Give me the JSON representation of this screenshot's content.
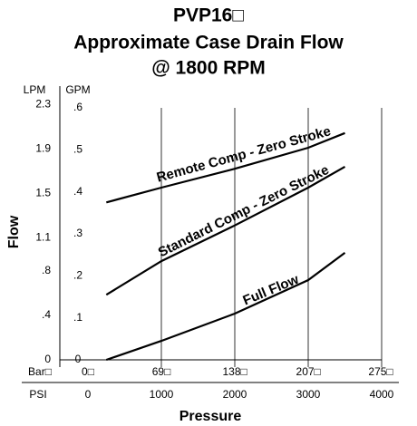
{
  "chart_data": {
    "type": "line",
    "title": [
      "PVP16□",
      "Approximate Case Drain Flow",
      "@ 1800 RPM"
    ],
    "ylabel": "Flow",
    "xlabel": "Pressure",
    "y_unit_labels": [
      "GPM",
      "LPM"
    ],
    "x_unit_labels": [
      "PSI",
      "Bar□"
    ],
    "x": [
      250,
      1000,
      2000,
      3000,
      3500
    ],
    "series": [
      {
        "name": "Remote Comp - Zero Stroke",
        "color": "#000000",
        "values": [
          0.375,
          0.41,
          0.455,
          0.505,
          0.54
        ]
      },
      {
        "name": "Standard Comp - Zero Stroke",
        "color": "#000000",
        "values": [
          0.155,
          0.235,
          0.32,
          0.41,
          0.46
        ]
      },
      {
        "name": "Full Flow",
        "color": "#000000",
        "values": [
          0.0,
          0.045,
          0.11,
          0.19,
          0.255
        ]
      }
    ],
    "xlim": [
      0,
      4000
    ],
    "xticks": [
      0,
      1000,
      2000,
      3000,
      4000
    ],
    "x2lim": [
      0,
      275.8
    ],
    "x2ticks": [
      {
        "value": 0,
        "label": "0□"
      },
      {
        "value": 69,
        "label": "69□"
      },
      {
        "value": 138,
        "label": "138□"
      },
      {
        "value": 207,
        "label": "207□"
      },
      {
        "value": 275,
        "label": "275□"
      }
    ],
    "ylim": [
      0,
      0.6
    ],
    "yticks": [
      0,
      {
        "value": 0.1,
        "label": ".1"
      },
      {
        "value": 0.2,
        "label": ".2"
      },
      {
        "value": 0.3,
        "label": ".3"
      },
      {
        "value": 0.4,
        "label": ".4"
      },
      {
        "value": 0.5,
        "label": ".5"
      },
      {
        "value": 0.6,
        "label": ".6"
      }
    ],
    "y2lim": [
      0,
      2.271
    ],
    "y2ticks": [
      0,
      {
        "value": 0.4,
        "label": ".4"
      },
      {
        "value": 0.8,
        "label": ".8"
      },
      1.1,
      1.5,
      1.9,
      2.3
    ],
    "grid": true
  }
}
